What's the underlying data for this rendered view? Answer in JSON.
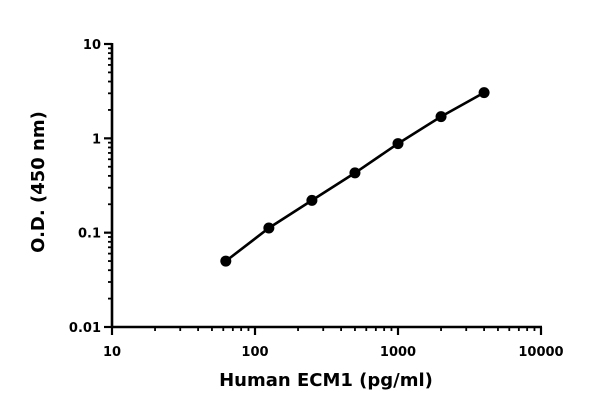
{
  "chart_data": {
    "type": "scatter",
    "xlabel": "Human ECM1 (pg/ml)",
    "ylabel": "O.D. (450 nm)",
    "x_scale": "log",
    "y_scale": "log",
    "xlim": [
      10,
      10000
    ],
    "ylim": [
      0.01,
      10
    ],
    "x_ticks": [
      10,
      100,
      1000,
      10000
    ],
    "x_tick_labels": [
      "10",
      "100",
      "1000",
      "10000"
    ],
    "y_ticks": [
      0.01,
      0.1,
      1,
      10
    ],
    "y_tick_labels": [
      "0.01",
      "0.1",
      "1",
      "10"
    ],
    "grid": false,
    "series": [
      {
        "x": [
          62.5,
          125,
          250,
          500,
          1000,
          2000,
          4000
        ],
        "y": [
          0.05,
          0.112,
          0.22,
          0.43,
          0.88,
          1.7,
          3.05
        ],
        "marker": "circle",
        "fit_line": true,
        "color": "#000000"
      }
    ]
  }
}
